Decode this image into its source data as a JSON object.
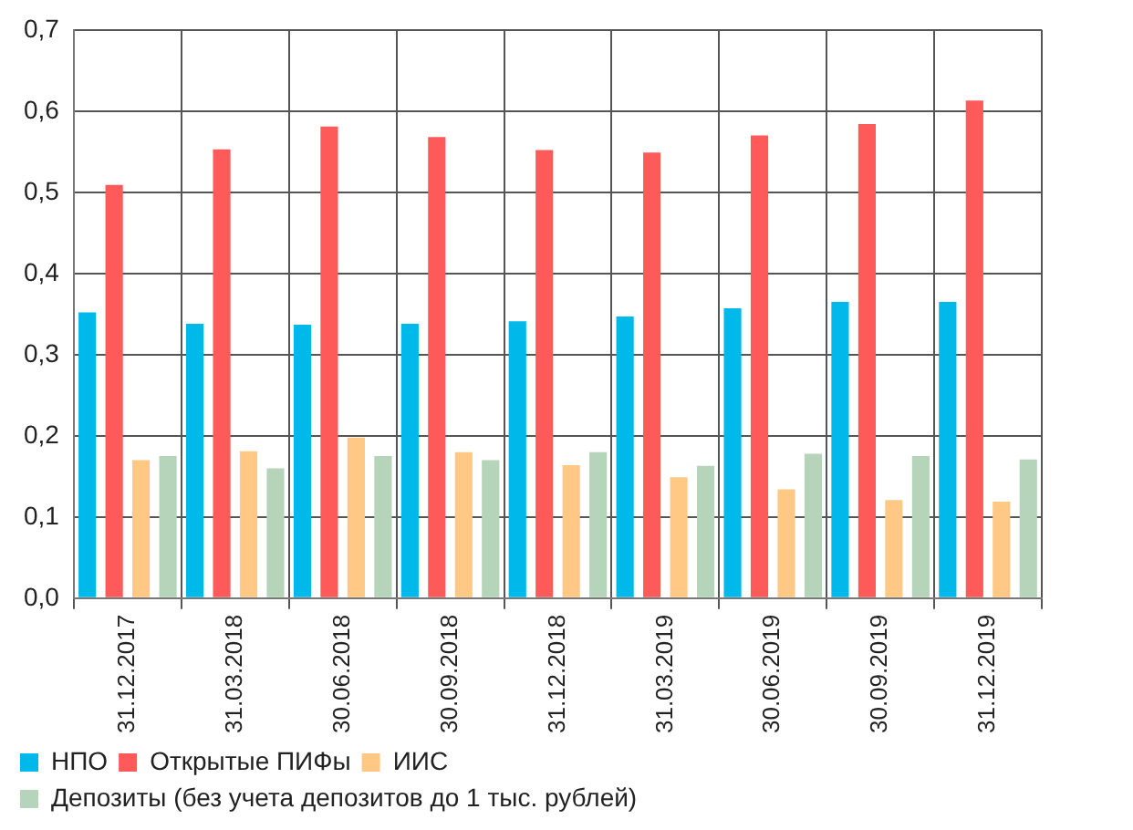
{
  "chart_data": {
    "type": "bar",
    "categories": [
      "31.12.2017",
      "31.03.2018",
      "30.06.2018",
      "30.09.2018",
      "31.12.2018",
      "31.03.2019",
      "30.06.2019",
      "30.09.2019",
      "31.12.2019"
    ],
    "series": [
      {
        "name": "НПО",
        "color": "#00b9eb",
        "values": [
          0.352,
          0.338,
          0.337,
          0.338,
          0.341,
          0.347,
          0.357,
          0.365,
          0.365
        ]
      },
      {
        "name": "Открытые ПИФы",
        "color": "#ff5a5a",
        "values": [
          0.509,
          0.553,
          0.581,
          0.568,
          0.552,
          0.549,
          0.57,
          0.584,
          0.613
        ]
      },
      {
        "name": "ИИС",
        "color": "#ffc985",
        "values": [
          0.17,
          0.181,
          0.198,
          0.18,
          0.164,
          0.149,
          0.134,
          0.121,
          0.119
        ]
      },
      {
        "name": "Депозиты (без учета депозитов до 1 тыс. рублей)",
        "color": "#b6d4b9",
        "values": [
          0.175,
          0.16,
          0.175,
          0.17,
          0.18,
          0.163,
          0.178,
          0.175,
          0.171
        ]
      }
    ],
    "ylim": [
      0,
      0.7
    ],
    "yticks": [
      {
        "value": 0,
        "label": "0,0"
      },
      {
        "value": 0.1,
        "label": "0,1"
      },
      {
        "value": 0.2,
        "label": "0,2"
      },
      {
        "value": 0.3,
        "label": "0,3"
      },
      {
        "value": 0.4,
        "label": "0,4"
      },
      {
        "value": 0.5,
        "label": "0,5"
      },
      {
        "value": 0.6,
        "label": "0,6"
      },
      {
        "value": 0.7,
        "label": "0,7"
      }
    ],
    "grid": true,
    "legend": "bottom"
  }
}
